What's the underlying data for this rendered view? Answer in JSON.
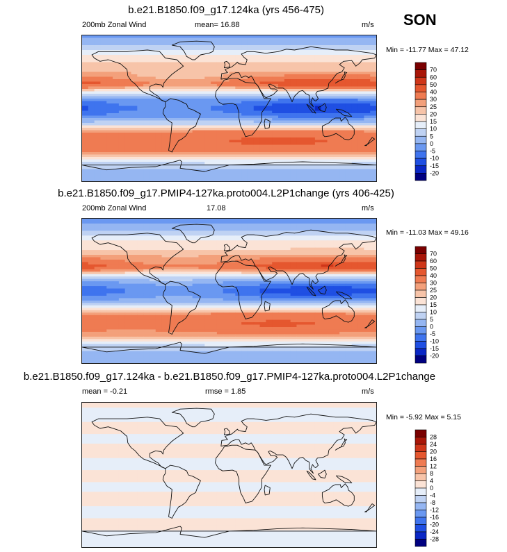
{
  "season": "SON",
  "units": "m/s",
  "colors": {
    "wind": [
      "#000080",
      "#0a27c6",
      "#1f4fe3",
      "#3f74ee",
      "#6a98f1",
      "#95b6f2",
      "#bfd2f3",
      "#e6eef9",
      "#fbe3d6",
      "#f7c4a9",
      "#f3a07b",
      "#ef7b52",
      "#e5572f",
      "#cf3619",
      "#a91608",
      "#7a0000"
    ],
    "diff": [
      "#000080",
      "#0a27c6",
      "#1f4fe3",
      "#3f74ee",
      "#6a98f1",
      "#95b6f2",
      "#bfd2f3",
      "#e6eef9",
      "#fbe3d6",
      "#f7c4a9",
      "#f3a07b",
      "#ef7b52",
      "#e5572f",
      "#cf3619",
      "#a91608",
      "#7a0000"
    ]
  },
  "panels": [
    {
      "title": "b.e21.B1850.f09_g17.124ka (yrs 456-475)",
      "left": "200mb Zonal Wind",
      "center": "mean=  16.88",
      "right": "m/s",
      "minmax": "Min = -11.77 Max =  47.12"
    },
    {
      "title": "b.e21.B1850.f09_g17.PMIP4-127ka.proto004.L2P1change (yrs 406-425)",
      "left": "200mb Zonal Wind",
      "center": "17.08",
      "right": "m/s",
      "minmax": "Min = -11.03 Max =  49.16"
    },
    {
      "title": "b.e21.B1850.f09_g17.124ka - b.e21.B1850.f09_g17.PMIP4-127ka.proto004.L2P1change",
      "left": "mean =  -0.21",
      "center": "rmse =   1.85",
      "right": "m/s",
      "minmax": "Min =  -5.92 Max =   5.15"
    }
  ],
  "chart_data": [
    {
      "type": "heatmap",
      "title": "b.e21.B1850.f09_g17.124ka (yrs 456-475)",
      "variable": "200mb Zonal Wind",
      "units": "m/s",
      "mean": 16.88,
      "min": -11.77,
      "max": 47.12,
      "colorbar_levels": [
        70,
        60,
        50,
        40,
        30,
        25,
        20,
        15,
        10,
        5,
        0,
        -5,
        -10,
        -15,
        -20
      ],
      "zonal_profile": {
        "lat": [
          90,
          75,
          62,
          50,
          40,
          30,
          20,
          10,
          0,
          -10,
          -20,
          -30,
          -42,
          -55,
          -65,
          -75,
          -90
        ],
        "u": [
          -2,
          6,
          18,
          22,
          28,
          40,
          12,
          -4,
          -10,
          -4,
          10,
          34,
          38,
          30,
          12,
          4,
          0
        ]
      }
    },
    {
      "type": "heatmap",
      "title": "b.e21.B1850.f09_g17.PMIP4-127ka.proto004.L2P1change (yrs 406-425)",
      "variable": "200mb Zonal Wind",
      "units": "m/s",
      "mean": 17.08,
      "min": -11.03,
      "max": 49.16,
      "colorbar_levels": [
        70,
        60,
        50,
        40,
        30,
        25,
        20,
        15,
        10,
        5,
        0,
        -5,
        -10,
        -15,
        -20
      ],
      "zonal_profile": {
        "lat": [
          90,
          75,
          62,
          50,
          40,
          30,
          20,
          10,
          0,
          -10,
          -20,
          -30,
          -42,
          -55,
          -65,
          -75,
          -90
        ],
        "u": [
          -3,
          4,
          16,
          21,
          30,
          42,
          14,
          -2,
          -9,
          -2,
          12,
          33,
          37,
          28,
          12,
          4,
          0
        ]
      }
    },
    {
      "type": "heatmap",
      "title": "b.e21.B1850.f09_g17.124ka - b.e21.B1850.f09_g17.PMIP4-127ka.proto004.L2P1change",
      "units": "m/s",
      "mean": -0.21,
      "rmse": 1.85,
      "min": -5.92,
      "max": 5.15,
      "colorbar_levels": [
        28,
        24,
        20,
        16,
        12,
        8,
        4,
        0,
        -4,
        -8,
        -12,
        -16,
        -20,
        -24,
        -28
      ],
      "zonal_profile": {
        "lat": [
          90,
          75,
          60,
          45,
          30,
          15,
          0,
          -15,
          -30,
          -45,
          -60,
          -75,
          -90
        ],
        "u": [
          1,
          -1.5,
          1,
          -1,
          1.5,
          -1.5,
          1,
          -1,
          1.5,
          -1.5,
          1,
          -1,
          0
        ]
      }
    }
  ]
}
